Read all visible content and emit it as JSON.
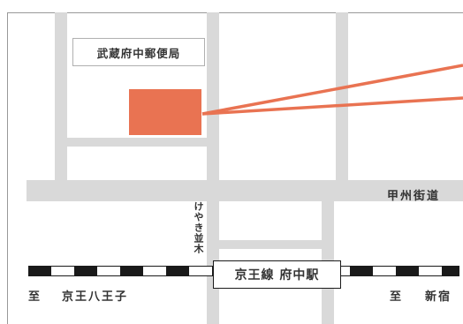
{
  "labels": {
    "post_office": "武蔵府中郵便局",
    "koshu_kaido": "甲州街道",
    "keyaki_namiki": "けやき並木",
    "station": "京王線 府中駅",
    "dest_left_prefix": "至",
    "dest_left_name": "京王八王子",
    "dest_right_prefix": "至",
    "dest_right_name": "新宿"
  },
  "colors": {
    "marker": "#e97352",
    "road": "#d9d9d9",
    "rail_dark": "#1a1a1a",
    "text": "#333333"
  }
}
